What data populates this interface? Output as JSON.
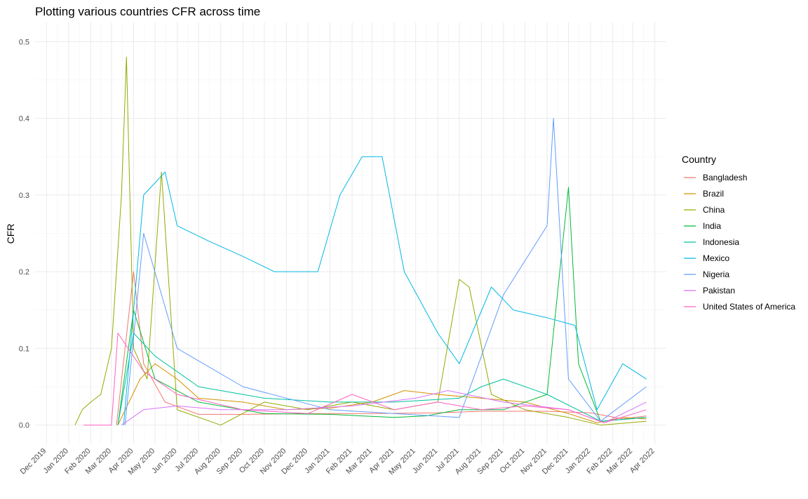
{
  "chart_data": {
    "type": "line",
    "title": "Plotting various countries CFR across time",
    "xlabel": "",
    "ylabel": "CFR",
    "x_range": [
      "2019-11-15",
      "2022-04-17"
    ],
    "ylim": [
      -0.025,
      0.525
    ],
    "y_ticks": [
      0.0,
      0.1,
      0.2,
      0.3,
      0.4,
      0.5
    ],
    "y_tick_labels": [
      "0.0",
      "0.1",
      "0.2",
      "0.3",
      "0.4",
      "0.5"
    ],
    "x_ticks": [
      "2019-12-01",
      "2020-01-01",
      "2020-02-01",
      "2020-03-01",
      "2020-04-01",
      "2020-05-01",
      "2020-06-01",
      "2020-07-01",
      "2020-08-01",
      "2020-09-01",
      "2020-10-01",
      "2020-11-01",
      "2020-12-01",
      "2021-01-01",
      "2021-02-01",
      "2021-03-01",
      "2021-04-01",
      "2021-05-01",
      "2021-06-01",
      "2021-07-01",
      "2021-08-01",
      "2021-09-01",
      "2021-10-01",
      "2021-11-01",
      "2021-12-01",
      "2022-01-01",
      "2022-02-01",
      "2022-03-01",
      "2022-04-01"
    ],
    "x_tick_labels": [
      "Dec 2019",
      "Jan 2020",
      "Feb 2020",
      "Mar 2020",
      "Apr 2020",
      "May 2020",
      "Jun 2020",
      "Jul 2020",
      "Aug 2020",
      "Sep 2020",
      "Oct 2020",
      "Nov 2020",
      "Dec 2020",
      "Jan 2021",
      "Feb 2021",
      "Mar 2021",
      "Apr 2021",
      "May 2021",
      "Jun 2021",
      "Jul 2021",
      "Aug 2021",
      "Sep 2021",
      "Oct 2021",
      "Nov 2021",
      "Dec 2021",
      "Jan 2022",
      "Feb 2022",
      "Mar 2022",
      "Apr 2022"
    ],
    "grid": true,
    "legend_position": "right",
    "legend_title": "Country",
    "series": [
      {
        "name": "Bangladesh",
        "color": "#F8766D",
        "dates": [
          "2020-03-08",
          "2020-04-01",
          "2020-04-15",
          "2020-05-15",
          "2020-07-01",
          "2020-09-01",
          "2020-12-01",
          "2021-03-01",
          "2021-06-01",
          "2021-08-01",
          "2021-11-01",
          "2022-01-01",
          "2022-02-15",
          "2022-03-20"
        ],
        "values": [
          0.0,
          0.2,
          0.08,
          0.03,
          0.014,
          0.014,
          0.015,
          0.015,
          0.016,
          0.018,
          0.018,
          0.016,
          0.008,
          0.012
        ]
      },
      {
        "name": "Brazil",
        "color": "#D39200",
        "dates": [
          "2020-03-10",
          "2020-04-10",
          "2020-05-01",
          "2020-06-01",
          "2020-07-01",
          "2020-09-01",
          "2020-11-01",
          "2021-01-01",
          "2021-03-01",
          "2021-04-15",
          "2021-06-01",
          "2021-08-01",
          "2021-10-01",
          "2021-12-01",
          "2022-01-10",
          "2022-02-15",
          "2022-03-20"
        ],
        "values": [
          0.0,
          0.06,
          0.08,
          0.06,
          0.035,
          0.03,
          0.02,
          0.022,
          0.03,
          0.045,
          0.04,
          0.035,
          0.03,
          0.015,
          0.003,
          0.01,
          0.008
        ]
      },
      {
        "name": "China",
        "color": "#93AA00",
        "dates": [
          "2020-01-10",
          "2020-01-20",
          "2020-02-01",
          "2020-02-15",
          "2020-03-01",
          "2020-03-15",
          "2020-03-22",
          "2020-04-01",
          "2020-04-20",
          "2020-05-10",
          "2020-06-01",
          "2020-08-01",
          "2020-10-01",
          "2020-12-01",
          "2021-02-01",
          "2021-04-01",
          "2021-06-01",
          "2021-07-01",
          "2021-07-15",
          "2021-08-15",
          "2021-10-01",
          "2021-12-01",
          "2022-01-15",
          "2022-03-20"
        ],
        "values": [
          0.0,
          0.02,
          0.03,
          0.04,
          0.1,
          0.3,
          0.48,
          0.1,
          0.06,
          0.33,
          0.02,
          0.0,
          0.03,
          0.02,
          0.03,
          0.02,
          0.03,
          0.19,
          0.18,
          0.04,
          0.02,
          0.01,
          0.0,
          0.005
        ]
      },
      {
        "name": "India",
        "color": "#00BA38",
        "dates": [
          "2020-03-10",
          "2020-04-01",
          "2020-05-01",
          "2020-07-01",
          "2020-10-01",
          "2021-01-01",
          "2021-04-01",
          "2021-05-15",
          "2021-07-01",
          "2021-09-01",
          "2021-11-01",
          "2021-12-01",
          "2021-12-15",
          "2022-01-15",
          "2022-03-20"
        ],
        "values": [
          0.0,
          0.15,
          0.06,
          0.03,
          0.015,
          0.014,
          0.01,
          0.012,
          0.02,
          0.02,
          0.04,
          0.31,
          0.08,
          0.005,
          0.01
        ]
      },
      {
        "name": "Indonesia",
        "color": "#00C19F",
        "dates": [
          "2020-03-10",
          "2020-04-01",
          "2020-05-01",
          "2020-07-01",
          "2020-10-01",
          "2021-01-01",
          "2021-04-01",
          "2021-07-01",
          "2021-08-01",
          "2021-09-01",
          "2021-11-01",
          "2022-01-15",
          "2022-03-20"
        ],
        "values": [
          0.0,
          0.12,
          0.09,
          0.05,
          0.035,
          0.03,
          0.03,
          0.035,
          0.05,
          0.06,
          0.04,
          0.005,
          0.01
        ]
      },
      {
        "name": "Mexico",
        "color": "#00B9E3",
        "dates": [
          "2020-03-18",
          "2020-04-15",
          "2020-05-15",
          "2020-06-01",
          "2020-07-15",
          "2020-09-01",
          "2020-10-15",
          "2020-12-15",
          "2021-01-15",
          "2021-02-15",
          "2021-03-15",
          "2021-04-15",
          "2021-06-01",
          "2021-07-01",
          "2021-08-15",
          "2021-09-15",
          "2021-11-01",
          "2021-12-10",
          "2022-01-10",
          "2022-02-15",
          "2022-03-20"
        ],
        "values": [
          0.0,
          0.3,
          0.33,
          0.26,
          0.24,
          0.22,
          0.2,
          0.2,
          0.3,
          0.35,
          0.35,
          0.2,
          0.12,
          0.08,
          0.18,
          0.15,
          0.14,
          0.13,
          0.02,
          0.08,
          0.06
        ]
      },
      {
        "name": "Nigeria",
        "color": "#619CFF",
        "dates": [
          "2020-03-20",
          "2020-04-15",
          "2020-06-01",
          "2020-09-01",
          "2021-01-01",
          "2021-04-01",
          "2021-07-01",
          "2021-09-01",
          "2021-11-01",
          "2021-11-10",
          "2021-12-01",
          "2022-01-15",
          "2022-03-20"
        ],
        "values": [
          0.0,
          0.25,
          0.1,
          0.05,
          0.02,
          0.015,
          0.01,
          0.17,
          0.26,
          0.4,
          0.06,
          0.005,
          0.05
        ]
      },
      {
        "name": "Pakistan",
        "color": "#DB72FB",
        "dates": [
          "2020-03-15",
          "2020-04-15",
          "2020-06-01",
          "2020-08-01",
          "2020-11-01",
          "2021-02-01",
          "2021-05-01",
          "2021-06-15",
          "2021-09-01",
          "2021-12-01",
          "2022-01-20",
          "2022-03-20"
        ],
        "values": [
          0.0,
          0.02,
          0.025,
          0.02,
          0.02,
          0.025,
          0.035,
          0.045,
          0.03,
          0.02,
          0.003,
          0.03
        ]
      },
      {
        "name": "United States of America",
        "color": "#FF61C3",
        "dates": [
          "2020-01-22",
          "2020-03-01",
          "2020-03-10",
          "2020-04-15",
          "2020-06-01",
          "2020-09-01",
          "2020-12-01",
          "2021-02-01",
          "2021-04-01",
          "2021-06-01",
          "2021-08-01",
          "2021-10-01",
          "2021-12-01",
          "2022-01-20",
          "2022-03-20"
        ],
        "values": [
          0.0,
          0.0,
          0.12,
          0.07,
          0.04,
          0.02,
          0.015,
          0.04,
          0.02,
          0.03,
          0.02,
          0.025,
          0.02,
          0.003,
          0.02
        ]
      }
    ]
  }
}
